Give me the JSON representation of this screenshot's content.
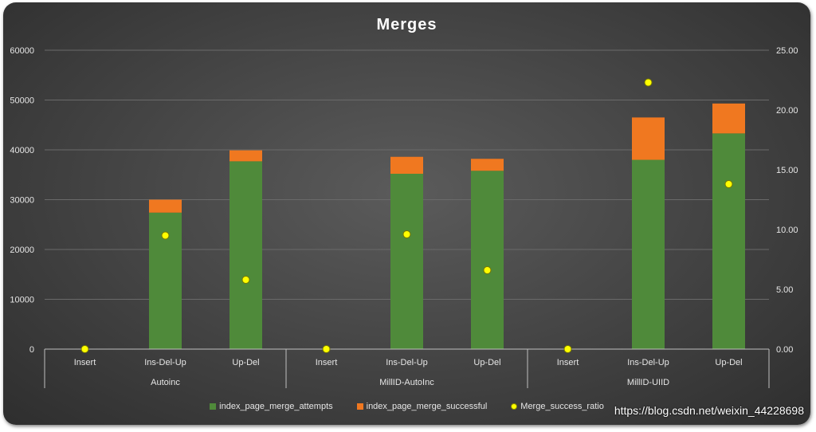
{
  "chart_data": {
    "type": "bar",
    "title": "Merges",
    "groups": [
      {
        "name": "Autoinc",
        "categories": [
          "Insert",
          "Ins-Del-Up",
          "Up-Del"
        ]
      },
      {
        "name": "MillID-AutoInc",
        "categories": [
          "Insert",
          "Ins-Del-Up",
          "Up-Del"
        ]
      },
      {
        "name": "MillID-UIID",
        "categories": [
          "Insert",
          "Ins-Del-Up",
          "Up-Del"
        ]
      }
    ],
    "series": [
      {
        "name": "index_page_merge_attempts",
        "kind": "stacked-bar",
        "axis": "left",
        "color": "#4f8a3a",
        "values": [
          0,
          27400,
          37700,
          0,
          35200,
          35800,
          0,
          38000,
          43300
        ]
      },
      {
        "name": "index_page_merge_successful",
        "kind": "stacked-bar",
        "axis": "left",
        "color": "#f07820",
        "values": [
          0,
          2600,
          2200,
          0,
          3400,
          2400,
          0,
          8500,
          6000
        ]
      },
      {
        "name": "Merge_success_ratio",
        "kind": "scatter",
        "axis": "right",
        "color": "#ffff00",
        "values": [
          0.0,
          9.5,
          5.8,
          0.0,
          9.6,
          6.6,
          0.0,
          22.3,
          13.8
        ]
      }
    ],
    "y_left": {
      "min": 0,
      "max": 60000,
      "ticks": [
        "0",
        "10000",
        "20000",
        "30000",
        "40000",
        "50000",
        "60000"
      ]
    },
    "y_right": {
      "min": 0,
      "max": 25,
      "ticks": [
        "0.00",
        "5.00",
        "10.00",
        "15.00",
        "20.00",
        "25.00"
      ]
    },
    "grid": true,
    "legend_position": "bottom"
  },
  "watermark": "https://blog.csdn.net/weixin_44228698"
}
